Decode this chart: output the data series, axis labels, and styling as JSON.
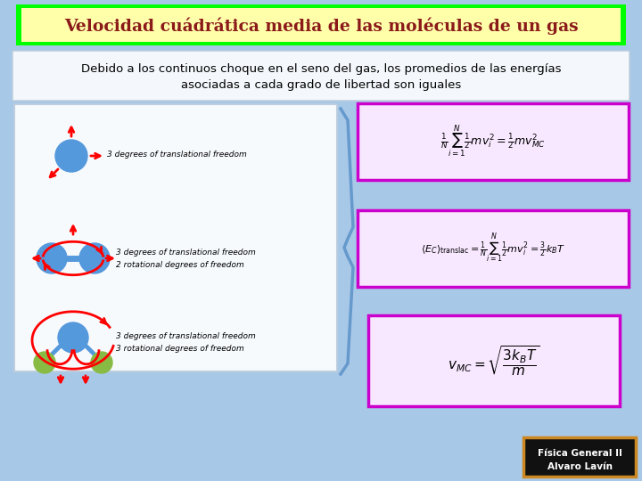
{
  "title": "Velocidad cuádrática media de las moléculas de un gas",
  "title_color": "#8B1A1A",
  "title_bg": "#FFFFAA",
  "title_border": "#00FF00",
  "bg_color": "#A8C8E8",
  "subtitle_line1": "Debido a los continuos choque en el seno del gas, los promedios de las energías",
  "subtitle_line2": "asociadas a cada grado de libertad son iguales",
  "formula_border": "#CC00CC",
  "formula_bg": "#F8E8FF",
  "footer_line1": "Física General II",
  "footer_line2": "Alvaro Lavín",
  "mol1_text": "3 degrees of translational freedom",
  "mol2_text1": "3 degrees of translational freedom",
  "mol2_text2": "2 rotational degrees of freedom",
  "mol3_text1": "3 degrees of translational freedom",
  "mol3_text2": "3 rotational degrees of freedom",
  "sphere_color": "#5599DD",
  "green_sphere_color": "#88BB44",
  "arrow_color": "red",
  "brace_color": "#6699CC",
  "left_box_bg": "white",
  "sub_box_bg": "white"
}
